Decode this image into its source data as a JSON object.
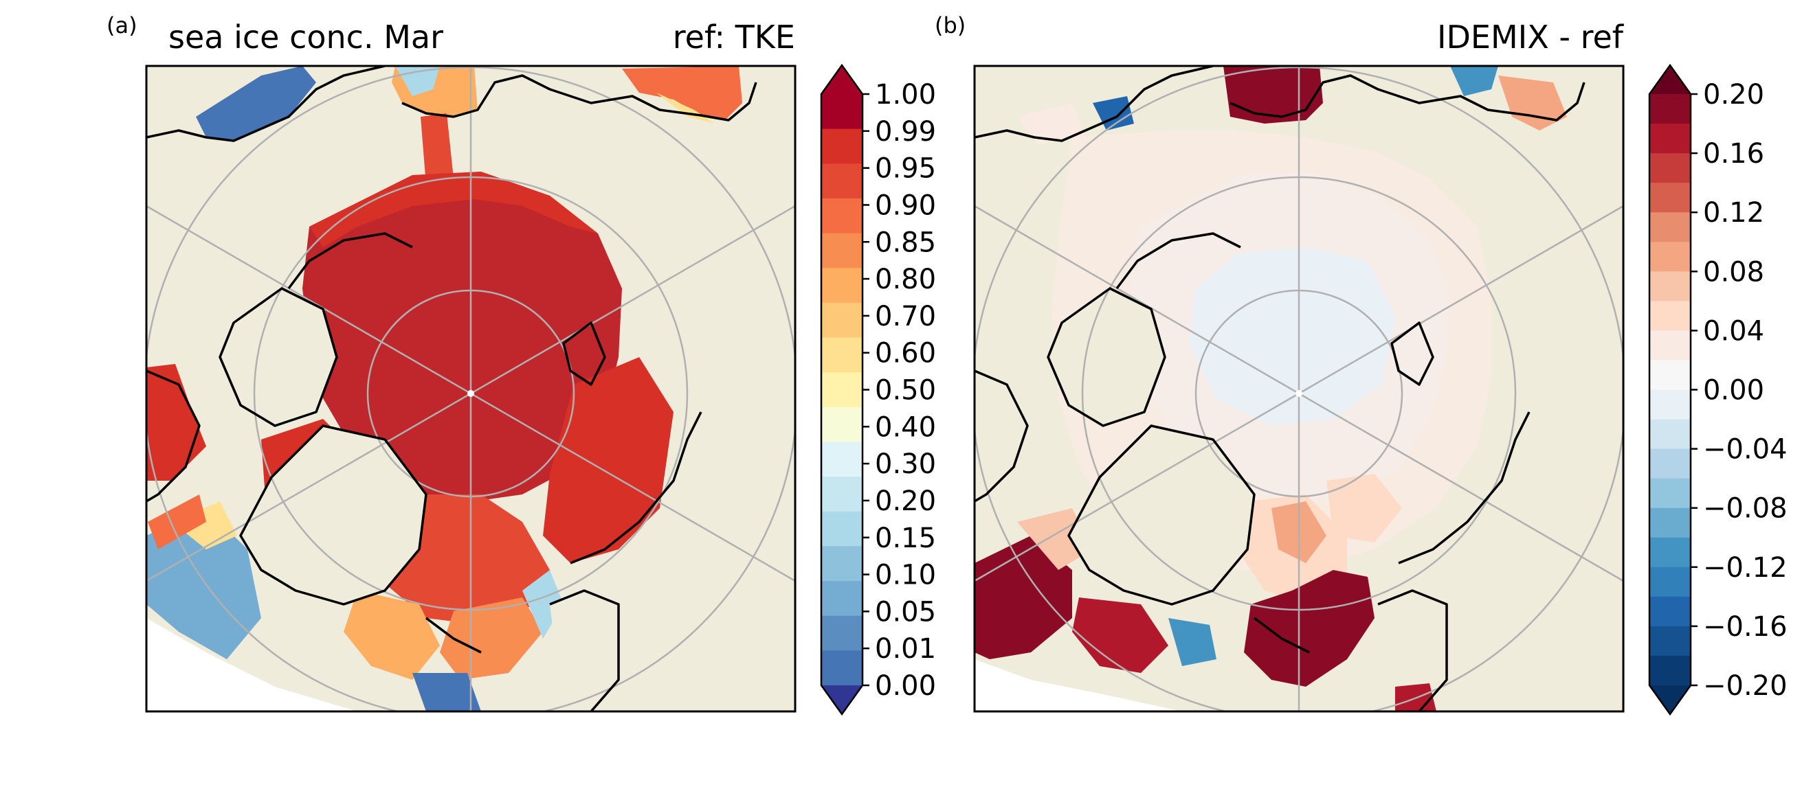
{
  "figure": {
    "panels": [
      {
        "id": "a",
        "panel_label": "(a)",
        "title_left": "sea ice conc. Mar",
        "title_right": "ref: TKE",
        "projection": "north-polar-stereographic",
        "colorbar": {
          "ticks": [
            "1.00",
            "0.99",
            "0.95",
            "0.90",
            "0.85",
            "0.80",
            "0.70",
            "0.60",
            "0.50",
            "0.40",
            "0.30",
            "0.20",
            "0.15",
            "0.10",
            "0.05",
            "0.01",
            "0.00"
          ],
          "colors": [
            "#a50026",
            "#d73027",
            "#e34933",
            "#f46d43",
            "#f88d52",
            "#fdae61",
            "#fdc877",
            "#fee090",
            "#fff3ab",
            "#f7fbd7",
            "#e0f3f8",
            "#c6e6f0",
            "#abd9e9",
            "#8ec1dc",
            "#74add1",
            "#5b8dc1",
            "#4575b4"
          ],
          "extend_top_color": "#a50026",
          "extend_bottom_color": "#313695"
        }
      },
      {
        "id": "b",
        "panel_label": "(b)",
        "title_left": "",
        "title_right": "IDEMIX - ref",
        "projection": "north-polar-stereographic",
        "colorbar": {
          "ticks": [
            "0.20",
            "0.16",
            "0.12",
            "0.08",
            "0.04",
            "0.00",
            "−0.04",
            "−0.08",
            "−0.12",
            "−0.16",
            "−0.20"
          ],
          "colors": [
            "#8b0a25",
            "#b2182b",
            "#c63c3b",
            "#d6604d",
            "#e88d6e",
            "#f4a582",
            "#f8c5aa",
            "#fddbc7",
            "#f9ebe4",
            "#f7f7f7",
            "#e9f1f6",
            "#d1e5f0",
            "#b3d4e8",
            "#92c5de",
            "#6aabd0",
            "#4393c3",
            "#3280ba",
            "#2166ac",
            "#15528f",
            "#0a3c73"
          ],
          "extend_top_color": "#67001f",
          "extend_bottom_color": "#053061"
        }
      }
    ],
    "colors": {
      "land": "#efecdc",
      "ocean_missing": "#ffffff",
      "gridline": "#b0b0b0",
      "coastline": "#000000"
    }
  }
}
